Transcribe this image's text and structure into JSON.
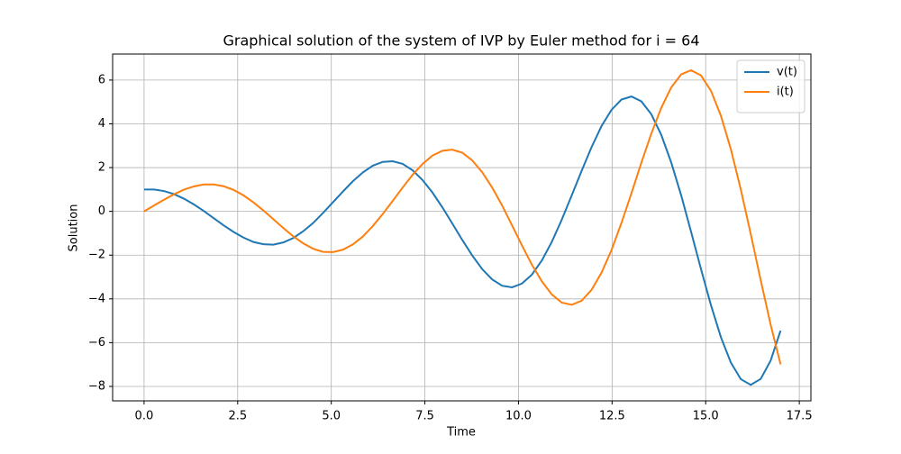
{
  "chart_data": {
    "type": "line",
    "title": "Graphical solution of the system of IVP by Euler method for i = 64",
    "x_label": "Time",
    "y_label": "Solution",
    "x": [
      0,
      0.266,
      0.531,
      0.797,
      1.063,
      1.328,
      1.594,
      1.859,
      2.125,
      2.391,
      2.656,
      2.922,
      3.188,
      3.453,
      3.719,
      3.984,
      4.25,
      4.516,
      4.781,
      5.047,
      5.313,
      5.578,
      5.844,
      6.109,
      6.375,
      6.641,
      6.906,
      7.172,
      7.438,
      7.703,
      7.969,
      8.234,
      8.5,
      8.766,
      9.031,
      9.297,
      9.563,
      9.828,
      10.094,
      10.359,
      10.625,
      10.891,
      11.156,
      11.422,
      11.688,
      11.953,
      12.219,
      12.484,
      12.75,
      13.016,
      13.281,
      13.547,
      13.813,
      14.078,
      14.344,
      14.609,
      14.875,
      15.141,
      15.406,
      15.672,
      15.938,
      16.203,
      16.469,
      16.734,
      17
    ],
    "series": [
      {
        "name": "v(t)",
        "color": "#1f77b4",
        "values": [
          1,
          1.0,
          0.93,
          0.79,
          0.58,
          0.32,
          0.02,
          -0.31,
          -0.64,
          -0.94,
          -1.2,
          -1.4,
          -1.5,
          -1.52,
          -1.42,
          -1.22,
          -0.91,
          -0.53,
          -0.07,
          0.42,
          0.91,
          1.38,
          1.78,
          2.09,
          2.26,
          2.29,
          2.17,
          1.88,
          1.43,
          0.86,
          0.18,
          -0.56,
          -1.31,
          -2.02,
          -2.64,
          -3.11,
          -3.4,
          -3.47,
          -3.3,
          -2.89,
          -2.24,
          -1.39,
          -0.38,
          0.73,
          1.86,
          2.94,
          3.9,
          4.64,
          5.11,
          5.25,
          5.03,
          4.44,
          3.5,
          2.24,
          0.74,
          -0.93,
          -2.64,
          -4.29,
          -5.75,
          -6.91,
          -7.67,
          -7.93,
          -7.66,
          -6.82,
          -5.45
        ]
      },
      {
        "name": "i(t)",
        "color": "#ff7f0e",
        "values": [
          0,
          0.27,
          0.53,
          0.78,
          0.99,
          1.14,
          1.23,
          1.23,
          1.15,
          0.98,
          0.73,
          0.41,
          0.04,
          -0.36,
          -0.76,
          -1.14,
          -1.46,
          -1.71,
          -1.85,
          -1.86,
          -1.75,
          -1.51,
          -1.15,
          -0.67,
          -0.12,
          0.48,
          1.09,
          1.67,
          2.17,
          2.55,
          2.77,
          2.82,
          2.68,
          2.33,
          1.79,
          1.09,
          0.27,
          -0.64,
          -1.56,
          -2.44,
          -3.2,
          -3.8,
          -4.17,
          -4.27,
          -4.08,
          -3.58,
          -2.8,
          -1.77,
          -0.53,
          0.82,
          2.22,
          3.55,
          4.73,
          5.66,
          6.26,
          6.45,
          6.21,
          5.51,
          4.37,
          2.84,
          1.0,
          -1.03,
          -3.14,
          -5.17,
          -6.99
        ]
      }
    ],
    "xlim": [
      -0.84,
      17.81
    ],
    "ylim": [
      -8.66,
      7.19
    ],
    "xticks": [
      {
        "value": 0,
        "label": "0.0"
      },
      {
        "value": 2.5,
        "label": "2.5"
      },
      {
        "value": 5,
        "label": "5.0"
      },
      {
        "value": 7.5,
        "label": "7.5"
      },
      {
        "value": 10,
        "label": "10.0"
      },
      {
        "value": 12.5,
        "label": "12.5"
      },
      {
        "value": 15,
        "label": "15.0"
      },
      {
        "value": 17.5,
        "label": "17.5"
      }
    ],
    "yticks": [
      {
        "value": -8,
        "label": "−8"
      },
      {
        "value": -6,
        "label": "−6"
      },
      {
        "value": -4,
        "label": "−4"
      },
      {
        "value": -2,
        "label": "−2"
      },
      0,
      2,
      4,
      6
    ],
    "grid": true,
    "legend": "upper right"
  }
}
